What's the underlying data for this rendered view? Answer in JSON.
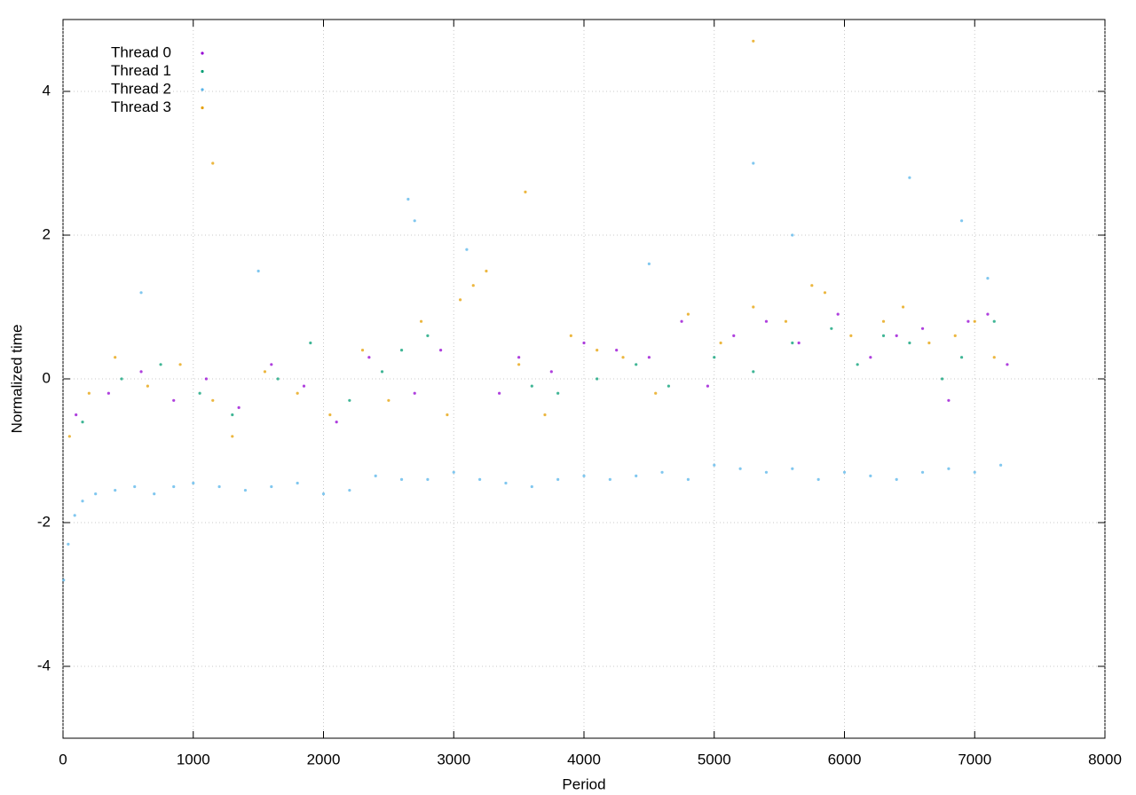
{
  "chart_data": {
    "type": "scatter",
    "x_label": "Period",
    "y_label": "Normalized time",
    "xlim": [
      0,
      8000
    ],
    "xticks": [
      0,
      1000,
      2000,
      3000,
      4000,
      5000,
      6000,
      7000,
      8000
    ],
    "ylim": [
      -5,
      5
    ],
    "yticks": [
      -4,
      -2,
      0,
      2,
      4
    ],
    "grid": true,
    "legend": "top-left",
    "series": [
      {
        "name": "Thread 0",
        "color": "#9400d3",
        "x": [
          100,
          350,
          600,
          850,
          1100,
          1350,
          1600,
          1850,
          2100,
          2350,
          2700,
          2900,
          3350,
          3500,
          3750,
          4000,
          4250,
          4500,
          4750,
          4950,
          5150,
          5400,
          5650,
          5950,
          6200,
          6400,
          6600,
          6800,
          6950,
          7100,
          7250
        ],
        "values": [
          -0.5,
          -0.2,
          0.1,
          -0.3,
          0.0,
          -0.4,
          0.2,
          -0.1,
          -0.6,
          0.3,
          -0.2,
          0.4,
          -0.2,
          0.3,
          0.1,
          0.5,
          0.4,
          0.3,
          0.8,
          -0.1,
          0.6,
          0.8,
          0.5,
          0.9,
          0.3,
          0.6,
          0.7,
          -0.3,
          0.8,
          0.9,
          0.2
        ]
      },
      {
        "name": "Thread 1",
        "color": "#009e73",
        "x": [
          150,
          450,
          750,
          1050,
          1300,
          1650,
          1900,
          2200,
          2450,
          2600,
          2800,
          3600,
          3800,
          4100,
          4400,
          4650,
          5000,
          5300,
          5600,
          5900,
          6100,
          6300,
          6500,
          6750,
          6900,
          7150
        ],
        "values": [
          -0.6,
          0.0,
          0.2,
          -0.2,
          -0.5,
          0.0,
          0.5,
          -0.3,
          0.1,
          0.4,
          0.6,
          -0.1,
          -0.2,
          0.0,
          0.2,
          -0.1,
          0.3,
          0.1,
          0.5,
          0.7,
          0.2,
          0.6,
          0.5,
          0.0,
          0.3,
          0.8
        ]
      },
      {
        "name": "Thread 2",
        "color": "#56b4e9",
        "x": [
          5,
          40,
          90,
          150,
          250,
          400,
          550,
          700,
          850,
          1000,
          1200,
          1400,
          1600,
          1800,
          2000,
          2200,
          2400,
          2600,
          2800,
          3000,
          3200,
          3400,
          3600,
          3800,
          4000,
          4200,
          4400,
          4600,
          4800,
          5000,
          5200,
          5400,
          5600,
          5800,
          6000,
          6200,
          6400,
          6600,
          6800,
          7000,
          7200,
          600,
          1500,
          2700,
          3100,
          4500,
          5600,
          6500,
          6900,
          7100,
          2650,
          5300
        ],
        "values": [
          -2.8,
          -2.3,
          -1.9,
          -1.7,
          -1.6,
          -1.55,
          -1.5,
          -1.6,
          -1.5,
          -1.45,
          -1.5,
          -1.55,
          -1.5,
          -1.45,
          -1.6,
          -1.55,
          -1.35,
          -1.4,
          -1.4,
          -1.3,
          -1.4,
          -1.45,
          -1.5,
          -1.4,
          -1.35,
          -1.4,
          -1.35,
          -1.3,
          -1.4,
          -1.2,
          -1.25,
          -1.3,
          -1.25,
          -1.4,
          -1.3,
          -1.35,
          -1.4,
          -1.3,
          -1.25,
          -1.3,
          -1.2,
          1.2,
          1.5,
          2.2,
          1.8,
          1.6,
          2.0,
          2.8,
          2.2,
          1.4,
          2.5,
          3.0
        ]
      },
      {
        "name": "Thread 3",
        "color": "#e69f00",
        "x": [
          50,
          200,
          400,
          650,
          900,
          1150,
          1300,
          1550,
          1800,
          2050,
          2300,
          2500,
          2750,
          2950,
          3050,
          3150,
          3250,
          3500,
          3700,
          3900,
          4100,
          4300,
          4550,
          4800,
          5050,
          5300,
          5550,
          5750,
          5850,
          6050,
          6300,
          6450,
          6650,
          6850,
          7000,
          7150,
          1150,
          3550,
          5300
        ],
        "values": [
          -0.8,
          -0.2,
          0.3,
          -0.1,
          0.2,
          -0.3,
          -0.8,
          0.1,
          -0.2,
          -0.5,
          0.4,
          -0.3,
          0.8,
          -0.5,
          1.1,
          1.3,
          1.5,
          0.2,
          -0.5,
          0.6,
          0.4,
          0.3,
          -0.2,
          0.9,
          0.5,
          1.0,
          0.8,
          1.3,
          1.2,
          0.6,
          0.8,
          1.0,
          0.5,
          0.6,
          0.8,
          0.3,
          3.0,
          2.6,
          4.7
        ]
      }
    ]
  }
}
